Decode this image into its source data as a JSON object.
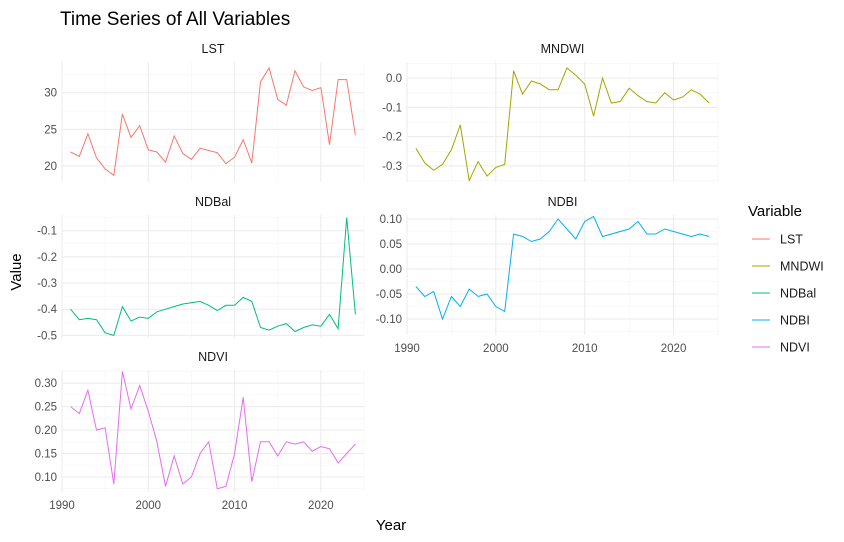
{
  "chart_data": {
    "type": "line",
    "title": "Time Series of All Variables",
    "xlabel": "Year",
    "ylabel": "Value",
    "legend": {
      "title": "Variable",
      "placement": "right"
    },
    "x_ticks": [
      1990,
      2000,
      2010,
      2020
    ],
    "xlim": [
      1990,
      2025
    ],
    "grid": true,
    "x": [
      1991,
      1992,
      1993,
      1994,
      1995,
      1996,
      1997,
      1998,
      1999,
      2000,
      2001,
      2002,
      2003,
      2004,
      2005,
      2006,
      2007,
      2008,
      2009,
      2010,
      2011,
      2012,
      2013,
      2014,
      2015,
      2016,
      2017,
      2018,
      2019,
      2020,
      2021,
      2022,
      2023,
      2024
    ],
    "series": [
      {
        "name": "LST",
        "color": "#F8766D",
        "ylim": [
          17.8,
          34.2
        ],
        "y_ticks": [
          20,
          25,
          30
        ],
        "y_tick_labels": [
          "20",
          "25",
          "30"
        ],
        "values": [
          21.9,
          21.3,
          24.4,
          21.1,
          19.6,
          18.7,
          27.1,
          23.9,
          25.5,
          22.2,
          21.9,
          20.5,
          24.1,
          21.7,
          20.9,
          22.4,
          22.1,
          21.8,
          20.3,
          21.2,
          23.6,
          20.4,
          31.5,
          33.4,
          29.1,
          28.3,
          33.0,
          30.8,
          30.3,
          30.7,
          22.9,
          31.8,
          31.8,
          24.2
        ]
      },
      {
        "name": "MNDWI",
        "color": "#A3A500",
        "ylim": [
          -0.355,
          0.055
        ],
        "y_ticks": [
          -0.3,
          -0.2,
          -0.1,
          0.0
        ],
        "y_tick_labels": [
          "-0.3",
          "-0.2",
          "-0.1",
          "0.0"
        ],
        "values": [
          -0.24,
          -0.29,
          -0.315,
          -0.295,
          -0.245,
          -0.16,
          -0.35,
          -0.285,
          -0.335,
          -0.305,
          -0.295,
          0.025,
          -0.055,
          -0.01,
          -0.02,
          -0.04,
          -0.04,
          0.035,
          0.01,
          -0.02,
          -0.13,
          0.0,
          -0.085,
          -0.08,
          -0.035,
          -0.06,
          -0.08,
          -0.085,
          -0.05,
          -0.075,
          -0.065,
          -0.04,
          -0.055,
          -0.085
        ]
      },
      {
        "name": "NDBal",
        "color": "#00BF7D",
        "ylim": [
          -0.51,
          -0.04
        ],
        "y_ticks": [
          -0.5,
          -0.4,
          -0.3,
          -0.2,
          -0.1
        ],
        "y_tick_labels": [
          "-0.5",
          "-0.4",
          "-0.3",
          "-0.2",
          "-0.1"
        ],
        "values": [
          -0.4,
          -0.44,
          -0.435,
          -0.44,
          -0.49,
          -0.5,
          -0.39,
          -0.445,
          -0.43,
          -0.435,
          -0.41,
          -0.4,
          -0.39,
          -0.38,
          -0.375,
          -0.37,
          -0.385,
          -0.405,
          -0.385,
          -0.385,
          -0.355,
          -0.37,
          -0.47,
          -0.48,
          -0.465,
          -0.455,
          -0.485,
          -0.47,
          -0.46,
          -0.465,
          -0.42,
          -0.475,
          -0.05,
          -0.42
        ]
      },
      {
        "name": "NDBI",
        "color": "#00B0F6",
        "ylim": [
          -0.132,
          0.108
        ],
        "y_ticks": [
          -0.1,
          -0.05,
          0.0,
          0.05,
          0.1
        ],
        "y_tick_labels": [
          "-0.10",
          "-0.05",
          "0.00",
          "0.05",
          "0.10"
        ],
        "values": [
          -0.035,
          -0.055,
          -0.045,
          -0.1,
          -0.055,
          -0.075,
          -0.04,
          -0.055,
          -0.05,
          -0.075,
          -0.085,
          0.07,
          0.065,
          0.055,
          0.06,
          0.075,
          0.1,
          0.08,
          0.06,
          0.095,
          0.105,
          0.065,
          0.07,
          0.075,
          0.08,
          0.095,
          0.07,
          0.07,
          0.08,
          0.075,
          0.07,
          0.065,
          0.07,
          0.065
        ]
      },
      {
        "name": "NDVI",
        "color": "#E76BF3",
        "ylim": [
          0.068,
          0.328
        ],
        "y_ticks": [
          0.1,
          0.15,
          0.2,
          0.25,
          0.3
        ],
        "y_tick_labels": [
          "0.10",
          "0.15",
          "0.20",
          "0.25",
          "0.30"
        ],
        "values": [
          0.25,
          0.235,
          0.285,
          0.2,
          0.205,
          0.085,
          0.325,
          0.245,
          0.295,
          0.24,
          0.175,
          0.08,
          0.145,
          0.085,
          0.1,
          0.15,
          0.175,
          0.075,
          0.08,
          0.15,
          0.27,
          0.09,
          0.175,
          0.175,
          0.145,
          0.175,
          0.17,
          0.175,
          0.155,
          0.165,
          0.16,
          0.13,
          0.15,
          0.17
        ]
      }
    ]
  }
}
